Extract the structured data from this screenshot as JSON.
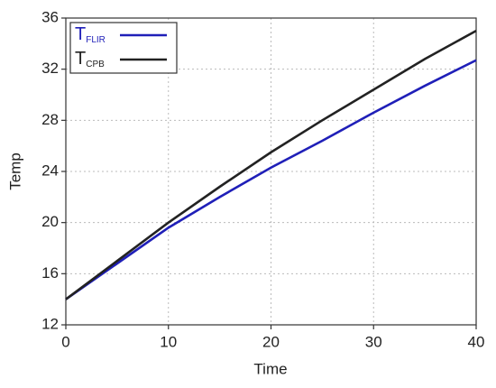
{
  "chart_data": {
    "type": "line",
    "x_label": "Time",
    "y_label": "Temp",
    "x": [
      0,
      5,
      10,
      15,
      20,
      25,
      30,
      35,
      40
    ],
    "series": [
      {
        "name": "TFLIR",
        "color": "#1f1fb8",
        "values": [
          14,
          16.8,
          19.6,
          22.0,
          24.3,
          26.4,
          28.6,
          30.7,
          32.7
        ]
      },
      {
        "name": "TCPB",
        "color": "#222222",
        "values": [
          14,
          17.0,
          20.0,
          22.8,
          25.5,
          28.0,
          30.4,
          32.8,
          35.0
        ]
      }
    ],
    "xlim": [
      0,
      40
    ],
    "xticks": [
      0,
      10,
      20,
      30,
      40
    ],
    "ylim": [
      12,
      36
    ],
    "yticks": [
      12,
      16,
      20,
      24,
      28,
      32,
      36
    ],
    "grid": true,
    "legend": "upper left"
  }
}
